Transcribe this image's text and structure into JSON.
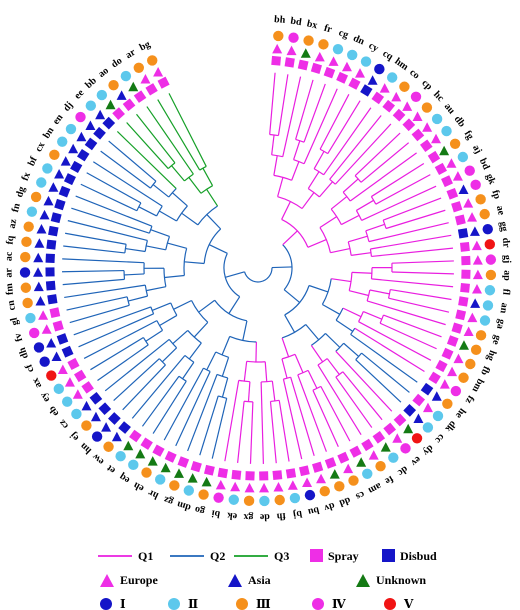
{
  "legend": {
    "q1": "Q1",
    "q2": "Q2",
    "q3": "Q3",
    "spray": "Spray",
    "disbud": "Disbud",
    "europe": "Europe",
    "asia": "Asia",
    "unknown": "Unknown",
    "g1": "Ⅰ",
    "g2": "Ⅱ",
    "g3": "Ⅲ",
    "g4": "Ⅳ",
    "g5": "Ⅴ"
  },
  "colors": {
    "q1": "#e91ee0",
    "q2": "#1f64b8",
    "q3": "#16a028",
    "spray": "#ee2ee6",
    "disbud": "#1515c8",
    "europe": "#ee2ee6",
    "asia": "#1515c8",
    "unknown": "#147a14",
    "g1": "#1515c8",
    "g2": "#5cc8ec",
    "g3": "#f5901c",
    "g4": "#ee2ee6",
    "g5": "#f01414"
  },
  "tree": {
    "leaves": [
      {
        "label": "bh",
        "clade": "q1",
        "type": "spray",
        "origin": "europe",
        "group": "g3"
      },
      {
        "label": "bd",
        "clade": "q1",
        "type": "spray",
        "origin": "europe",
        "group": "g4"
      },
      {
        "label": "bx",
        "clade": "q1",
        "type": "spray",
        "origin": "unknown",
        "group": "g3"
      },
      {
        "label": "fr",
        "clade": "q1",
        "type": "spray",
        "origin": "europe",
        "group": "g3"
      },
      {
        "label": "cg",
        "clade": "q1",
        "type": "spray",
        "origin": "europe",
        "group": "g2"
      },
      {
        "label": "dn",
        "clade": "q1",
        "type": "spray",
        "origin": "europe",
        "group": "g2"
      },
      {
        "label": "cy",
        "clade": "q1",
        "type": "spray",
        "origin": "europe",
        "group": "g2"
      },
      {
        "label": "cq",
        "clade": "q1",
        "type": "disbud",
        "origin": "asia",
        "group": "g1"
      },
      {
        "label": "hm",
        "clade": "q1",
        "type": "spray",
        "origin": "europe",
        "group": "g2"
      },
      {
        "label": "co",
        "clade": "q1",
        "type": "spray",
        "origin": "europe",
        "group": "g3"
      },
      {
        "label": "cp",
        "clade": "q1",
        "type": "spray",
        "origin": "europe",
        "group": "g4"
      },
      {
        "label": "hc",
        "clade": "q1",
        "type": "spray",
        "origin": "europe",
        "group": "g3"
      },
      {
        "label": "au",
        "clade": "q1",
        "type": "spray",
        "origin": "europe",
        "group": "g2"
      },
      {
        "label": "db",
        "clade": "q1",
        "type": "spray",
        "origin": "europe",
        "group": "g2"
      },
      {
        "label": "fg",
        "clade": "q1",
        "type": "spray",
        "origin": "unknown",
        "group": "g3"
      },
      {
        "label": "aj",
        "clade": "q1",
        "type": "spray",
        "origin": "europe",
        "group": "g2"
      },
      {
        "label": "bd",
        "clade": "q1",
        "type": "spray",
        "origin": "europe",
        "group": "g4"
      },
      {
        "label": "gk",
        "clade": "q1",
        "type": "spray",
        "origin": "asia",
        "group": "g4"
      },
      {
        "label": "fp",
        "clade": "q1",
        "type": "spray",
        "origin": "europe",
        "group": "g3"
      },
      {
        "label": "ae",
        "clade": "q1",
        "type": "spray",
        "origin": "europe",
        "group": "g3"
      },
      {
        "label": "gg",
        "clade": "q1",
        "type": "disbud",
        "origin": "asia",
        "group": "g1"
      },
      {
        "label": "dr",
        "clade": "q1",
        "type": "spray",
        "origin": "europe",
        "group": "g5"
      },
      {
        "label": "gj",
        "clade": "q1",
        "type": "spray",
        "origin": "europe",
        "group": "g4"
      },
      {
        "label": "ap",
        "clade": "q1",
        "type": "spray",
        "origin": "europe",
        "group": "g3"
      },
      {
        "label": "fl",
        "clade": "q1",
        "type": "spray",
        "origin": "europe",
        "group": "g2"
      },
      {
        "label": "an",
        "clade": "q1",
        "type": "spray",
        "origin": "asia",
        "group": "g2"
      },
      {
        "label": "ga",
        "clade": "q1",
        "type": "spray",
        "origin": "europe",
        "group": "g2"
      },
      {
        "label": "ge",
        "clade": "q1",
        "type": "spray",
        "origin": "europe",
        "group": "g3"
      },
      {
        "label": "hg",
        "clade": "q1",
        "type": "spray",
        "origin": "unknown",
        "group": "g3"
      },
      {
        "label": "fb",
        "clade": "q1",
        "type": "spray",
        "origin": "europe",
        "group": "g3"
      },
      {
        "label": "bm",
        "clade": "q1",
        "type": "spray",
        "origin": "europe",
        "group": "g3"
      },
      {
        "label": "fz",
        "clade": "q1",
        "type": "spray",
        "origin": "europe",
        "group": "g4"
      },
      {
        "label": "he",
        "clade": "q2",
        "type": "disbud",
        "origin": "asia",
        "group": "g3"
      },
      {
        "label": "dk",
        "clade": "q2",
        "type": "spray",
        "origin": "europe",
        "group": "g2"
      },
      {
        "label": "cc",
        "clade": "q2",
        "type": "disbud",
        "origin": "asia",
        "group": "g2"
      },
      {
        "label": "dy",
        "clade": "q1",
        "type": "spray",
        "origin": "unknown",
        "group": "g5"
      },
      {
        "label": "ev",
        "clade": "q1",
        "type": "spray",
        "origin": "europe",
        "group": "g4"
      },
      {
        "label": "dc",
        "clade": "q1",
        "type": "spray",
        "origin": "unknown",
        "group": "g2"
      },
      {
        "label": "fe",
        "clade": "q1",
        "type": "spray",
        "origin": "europe",
        "group": "g3"
      },
      {
        "label": "am",
        "clade": "q1",
        "type": "spray",
        "origin": "unknown",
        "group": "g2"
      },
      {
        "label": "cs",
        "clade": "q1",
        "type": "spray",
        "origin": "europe",
        "group": "g3"
      },
      {
        "label": "dd",
        "clade": "q1",
        "type": "spray",
        "origin": "unknown",
        "group": "g3"
      },
      {
        "label": "dv",
        "clade": "q1",
        "type": "spray",
        "origin": "europe",
        "group": "g3"
      },
      {
        "label": "bu",
        "clade": "q1",
        "type": "spray",
        "origin": "europe",
        "group": "g1"
      },
      {
        "label": "bj",
        "clade": "q1",
        "type": "spray",
        "origin": "europe",
        "group": "g2"
      },
      {
        "label": "fh",
        "clade": "q1",
        "type": "spray",
        "origin": "europe",
        "group": "g3"
      },
      {
        "label": "de",
        "clade": "q1",
        "type": "spray",
        "origin": "europe",
        "group": "g2"
      },
      {
        "label": "gx",
        "clade": "q1",
        "type": "spray",
        "origin": "europe",
        "group": "g3"
      },
      {
        "label": "ek",
        "clade": "q1",
        "type": "spray",
        "origin": "europe",
        "group": "g2"
      },
      {
        "label": "bi",
        "clade": "q1",
        "type": "spray",
        "origin": "europe",
        "group": "g4"
      },
      {
        "label": "go",
        "clade": "q2",
        "type": "spray",
        "origin": "unknown",
        "group": "g3"
      },
      {
        "label": "dm",
        "clade": "q2",
        "type": "spray",
        "origin": "unknown",
        "group": "g2"
      },
      {
        "label": "gz",
        "clade": "q2",
        "type": "spray",
        "origin": "unknown",
        "group": "g3"
      },
      {
        "label": "hr",
        "clade": "q2",
        "type": "spray",
        "origin": "unknown",
        "group": "g2"
      },
      {
        "label": "eh",
        "clade": "q2",
        "type": "spray",
        "origin": "unknown",
        "group": "g3"
      },
      {
        "label": "eq",
        "clade": "q2",
        "type": "spray",
        "origin": "unknown",
        "group": "g2"
      },
      {
        "label": "et",
        "clade": "q2",
        "type": "spray",
        "origin": "unknown",
        "group": "g2"
      },
      {
        "label": "ew",
        "clade": "q2",
        "type": "disbud",
        "origin": "asia",
        "group": "g3"
      },
      {
        "label": "hn",
        "clade": "q2",
        "type": "disbud",
        "origin": "asia",
        "group": "g1"
      },
      {
        "label": "ej",
        "clade": "q2",
        "type": "disbud",
        "origin": "asia",
        "group": "g3"
      },
      {
        "label": "cz",
        "clade": "q2",
        "type": "disbud",
        "origin": "asia",
        "group": "g2"
      },
      {
        "label": "eb",
        "clade": "q2",
        "type": "spray",
        "origin": "europe",
        "group": "g2"
      },
      {
        "label": "ey",
        "clade": "q2",
        "type": "spray",
        "origin": "europe",
        "group": "g2"
      },
      {
        "label": "ax",
        "clade": "q2",
        "type": "spray",
        "origin": "europe",
        "group": "g5"
      },
      {
        "label": "cf",
        "clade": "q2",
        "type": "disbud",
        "origin": "asia",
        "group": "g1"
      },
      {
        "label": "dh",
        "clade": "q2",
        "type": "disbud",
        "origin": "asia",
        "group": "g1"
      },
      {
        "label": "fv",
        "clade": "q2",
        "type": "spray",
        "origin": "europe",
        "group": "g4"
      },
      {
        "label": "gl",
        "clade": "q2",
        "type": "spray",
        "origin": "europe",
        "group": "g2"
      },
      {
        "label": "cn",
        "clade": "q2",
        "type": "disbud",
        "origin": "asia",
        "group": "g3"
      },
      {
        "label": "fm",
        "clade": "q2",
        "type": "disbud",
        "origin": "asia",
        "group": "g3"
      },
      {
        "label": "ar",
        "clade": "q2",
        "type": "disbud",
        "origin": "asia",
        "group": "g1"
      },
      {
        "label": "ac",
        "clade": "q2",
        "type": "disbud",
        "origin": "asia",
        "group": "g3"
      },
      {
        "label": "fq",
        "clade": "q2",
        "type": "disbud",
        "origin": "asia",
        "group": "g3"
      },
      {
        "label": "az",
        "clade": "q2",
        "type": "disbud",
        "origin": "asia",
        "group": "g3"
      },
      {
        "label": "fn",
        "clade": "q2",
        "type": "disbud",
        "origin": "asia",
        "group": "g2"
      },
      {
        "label": "dg",
        "clade": "q2",
        "type": "disbud",
        "origin": "asia",
        "group": "g3"
      },
      {
        "label": "fx",
        "clade": "q2",
        "type": "disbud",
        "origin": "asia",
        "group": "g2"
      },
      {
        "label": "bf",
        "clade": "q2",
        "type": "disbud",
        "origin": "asia",
        "group": "g2"
      },
      {
        "label": "cx",
        "clade": "q2",
        "type": "disbud",
        "origin": "asia",
        "group": "g3"
      },
      {
        "label": "bn",
        "clade": "q2",
        "type": "disbud",
        "origin": "asia",
        "group": "g2"
      },
      {
        "label": "en",
        "clade": "q2",
        "type": "disbud",
        "origin": "asia",
        "group": "g2"
      },
      {
        "label": "dj",
        "clade": "q2",
        "type": "disbud",
        "origin": "asia",
        "group": "g4"
      },
      {
        "label": "ee",
        "clade": "q3",
        "type": "disbud",
        "origin": "asia",
        "group": "g2"
      },
      {
        "label": "bb",
        "clade": "q3",
        "type": "spray",
        "origin": "unknown",
        "group": "g2"
      },
      {
        "label": "ao",
        "clade": "q3",
        "type": "spray",
        "origin": "asia",
        "group": "g3"
      },
      {
        "label": "do",
        "clade": "q3",
        "type": "spray",
        "origin": "unknown",
        "group": "g2"
      },
      {
        "label": "ar",
        "clade": "q3",
        "type": "spray",
        "origin": "europe",
        "group": "g3"
      },
      {
        "label": "bg",
        "clade": "q3",
        "type": "spray",
        "origin": "europe",
        "group": "g3"
      }
    ]
  }
}
